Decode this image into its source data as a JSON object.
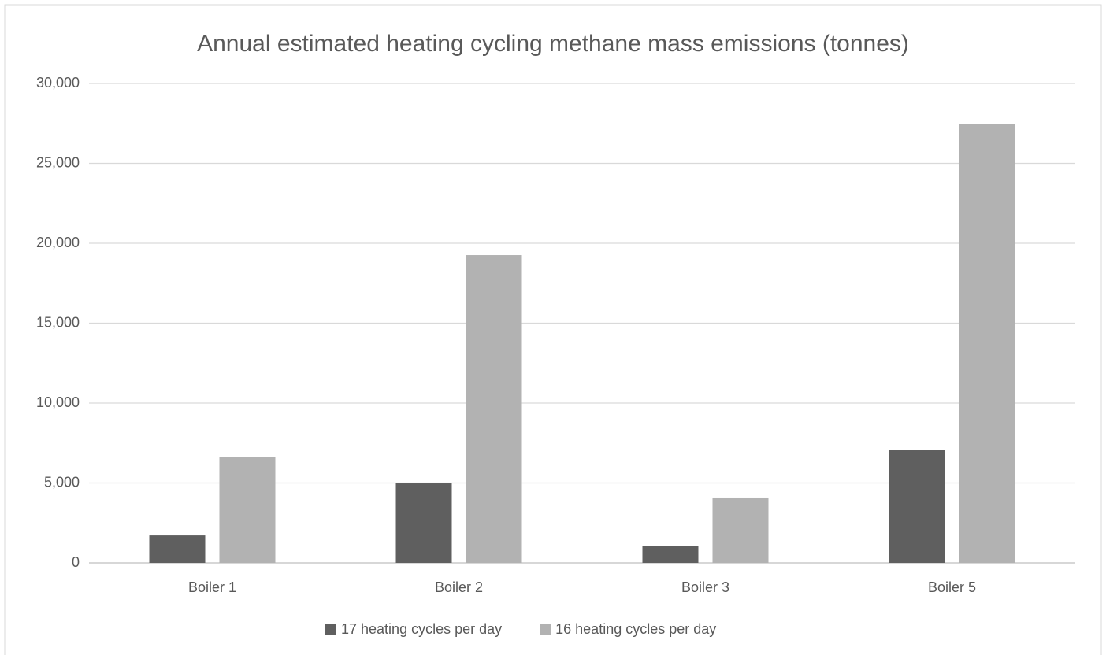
{
  "chart_data": {
    "type": "bar",
    "title": "Annual estimated heating cycling methane mass emissions (tonnes)",
    "categories": [
      "Boiler 1",
      "Boiler 2",
      "Boiler 3",
      "Boiler 5"
    ],
    "series": [
      {
        "name": "17 heating cycles per day",
        "color": "#5f5f5f",
        "values": [
          1720,
          4975,
          1080,
          7090
        ]
      },
      {
        "name": "16 heating cycles per day",
        "color": "#b2b2b2",
        "values": [
          6650,
          19260,
          4090,
          27440
        ]
      }
    ],
    "ylim": [
      0,
      30000
    ],
    "yticks": [
      0,
      {
        "value": 5000,
        "label": "5,000"
      },
      {
        "value": 10000,
        "label": "10,000"
      },
      {
        "value": 15000,
        "label": "15,000"
      },
      {
        "value": 20000,
        "label": "20,000"
      },
      {
        "value": 25000,
        "label": "25,000"
      },
      {
        "value": 30000,
        "label": "30,000"
      }
    ],
    "grid": true,
    "legend": "bottom"
  }
}
